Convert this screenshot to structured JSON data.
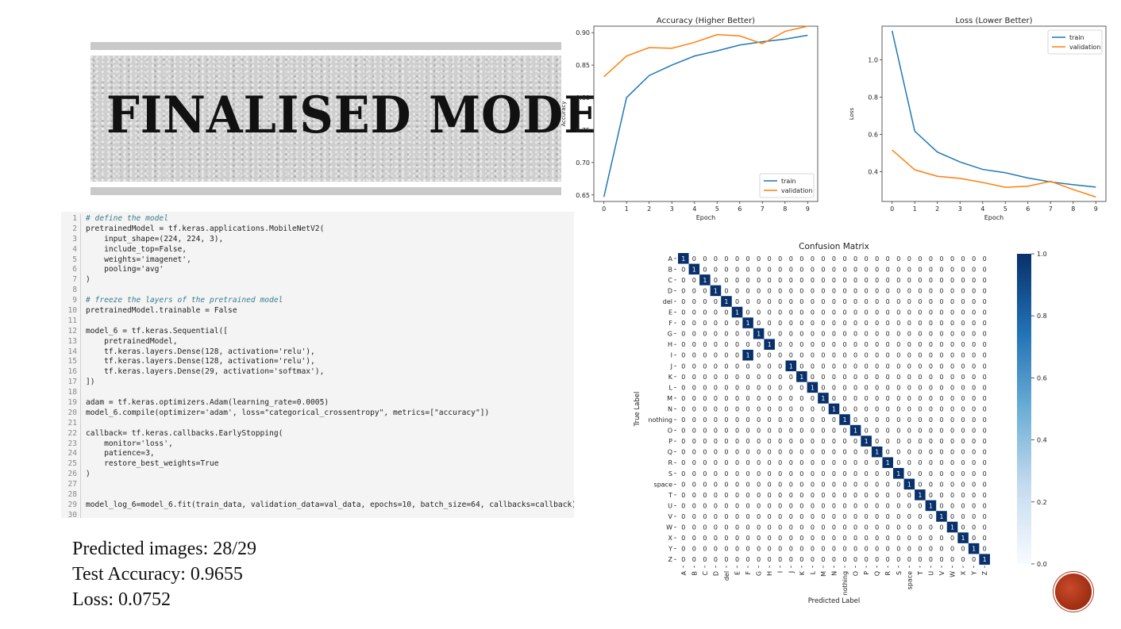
{
  "title": "FINALISED MODEL",
  "code": {
    "lines": [
      "# define the model",
      "pretrainedModel = tf.keras.applications.MobileNetV2(",
      "    input_shape=(224, 224, 3),",
      "    include_top=False,",
      "    weights='imagenet',",
      "    pooling='avg'",
      ")",
      "",
      "# freeze the layers of the pretrained model",
      "pretrainedModel.trainable = False",
      "",
      "model_6 = tf.keras.Sequential([",
      "    pretrainedModel,",
      "    tf.keras.layers.Dense(128, activation='relu'),",
      "    tf.keras.layers.Dense(128, activation='relu'),",
      "    tf.keras.layers.Dense(29, activation='softmax'),",
      "])",
      "",
      "adam = tf.keras.optimizers.Adam(learning_rate=0.0005)",
      "model_6.compile(optimizer='adam', loss=\"categorical_crossentropy\", metrics=[\"accuracy\"])",
      "",
      "callback= tf.keras.callbacks.EarlyStopping(",
      "    monitor='loss',",
      "    patience=3,",
      "    restore_best_weights=True",
      ")",
      "",
      "",
      "model_log_6=model_6.fit(train_data, validation_data=val_data, epochs=10, batch_size=64, callbacks=callback)",
      ""
    ]
  },
  "metrics": {
    "predicted": "Predicted images: 28/29",
    "accuracy": "Test Accuracy: 0.9655",
    "loss": "Loss: 0.0752"
  },
  "chart_data": [
    {
      "type": "line",
      "title": "Accuracy (Higher Better)",
      "xlabel": "Epoch",
      "ylabel": "Accuracy",
      "x": [
        0,
        1,
        2,
        3,
        4,
        5,
        6,
        7,
        8,
        9
      ],
      "ylim": [
        0.64,
        0.91
      ],
      "yticks": [
        0.65,
        0.7,
        0.75,
        0.8,
        0.85,
        0.9
      ],
      "legend": "lower-right",
      "series": [
        {
          "name": "train",
          "color": "#1f77b4",
          "values": [
            0.647,
            0.8,
            0.834,
            0.85,
            0.864,
            0.872,
            0.881,
            0.886,
            0.89,
            0.896
          ]
        },
        {
          "name": "validation",
          "color": "#ff7f0e",
          "values": [
            0.832,
            0.864,
            0.877,
            0.876,
            0.885,
            0.897,
            0.895,
            0.883,
            0.902,
            0.91
          ]
        }
      ]
    },
    {
      "type": "line",
      "title": "Loss (Lower Better)",
      "xlabel": "Epoch",
      "ylabel": "Loss",
      "x": [
        0,
        1,
        2,
        3,
        4,
        5,
        6,
        7,
        8,
        9
      ],
      "ylim": [
        0.24,
        1.18
      ],
      "yticks": [
        0.4,
        0.6,
        0.8,
        1.0
      ],
      "legend": "top-right",
      "series": [
        {
          "name": "train",
          "color": "#1f77b4",
          "values": [
            1.155,
            0.617,
            0.505,
            0.452,
            0.412,
            0.394,
            0.366,
            0.345,
            0.33,
            0.317
          ]
        },
        {
          "name": "validation",
          "color": "#ff7f0e",
          "values": [
            0.516,
            0.41,
            0.375,
            0.364,
            0.342,
            0.316,
            0.322,
            0.348,
            0.304,
            0.264
          ]
        }
      ]
    },
    {
      "type": "heatmap",
      "title": "Confusion Matrix",
      "xlabel": "Predicted Label",
      "ylabel": "True Label",
      "labels": [
        "A",
        "B",
        "C",
        "D",
        "del",
        "E",
        "F",
        "G",
        "H",
        "I",
        "J",
        "K",
        "L",
        "M",
        "N",
        "nothing",
        "O",
        "P",
        "Q",
        "R",
        "S",
        "space",
        "T",
        "U",
        "V",
        "W",
        "X",
        "Y",
        "Z"
      ],
      "misclassified": {
        "row": 9,
        "col": 6
      },
      "colorbar": {
        "ticks": [
          "0.0",
          "0.2",
          "0.4",
          "0.6",
          "0.8",
          "1.0"
        ],
        "range": [
          0,
          1
        ]
      }
    }
  ]
}
